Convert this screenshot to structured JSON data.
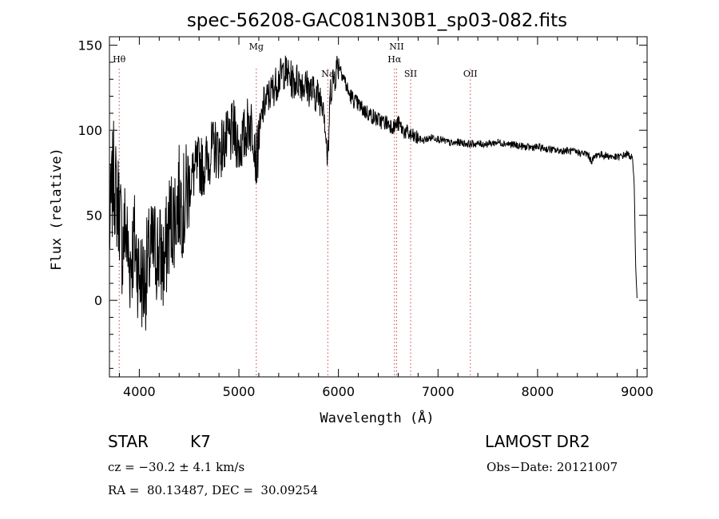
{
  "chart_data": {
    "type": "line",
    "title": "spec-56208-GAC081N30B1_sp03-082.fits",
    "xlabel": "Wavelength (Å)",
    "ylabel": "Flux (relative)",
    "xlim": [
      3700,
      9100
    ],
    "ylim": [
      -45,
      155
    ],
    "xticks": [
      4000,
      5000,
      6000,
      7000,
      8000,
      9000
    ],
    "yticks": [
      0,
      50,
      100,
      150
    ],
    "grid": false,
    "series": [
      {
        "x": [
          3700,
          3740,
          3770,
          3800,
          3830,
          3860,
          3900,
          3950,
          4000,
          4050,
          4100,
          4150,
          4200,
          4250,
          4300,
          4350,
          4400,
          4450,
          4500,
          4550,
          4600,
          4650,
          4700,
          4750,
          4800,
          4850,
          4900,
          4950,
          5000,
          5050,
          5100,
          5150,
          5175,
          5200,
          5250,
          5300,
          5350,
          5400,
          5450,
          5500,
          5550,
          5600,
          5650,
          5700,
          5750,
          5800,
          5850,
          5893,
          5920,
          5950,
          6000,
          6050,
          6100,
          6150,
          6200,
          6250,
          6300,
          6350,
          6400,
          6450,
          6500,
          6563,
          6600,
          6650,
          6700,
          6750,
          6800,
          6850,
          6900,
          6950,
          7000,
          7050,
          7100,
          7150,
          7200,
          7300,
          7400,
          7500,
          7600,
          7700,
          7800,
          7900,
          8000,
          8100,
          8200,
          8300,
          8400,
          8500,
          8542,
          8600,
          8700,
          8800,
          8850,
          8900,
          8950,
          8970,
          8985,
          9000
        ],
        "y": [
          40,
          75,
          60,
          55,
          30,
          45,
          20,
          35,
          15,
          10,
          25,
          30,
          28,
          20,
          45,
          50,
          60,
          55,
          70,
          75,
          80,
          78,
          85,
          90,
          88,
          92,
          95,
          100,
          90,
          95,
          105,
          100,
          80,
          95,
          115,
          120,
          125,
          130,
          135,
          132,
          128,
          130,
          127,
          125,
          122,
          120,
          118,
          80,
          125,
          130,
          140,
          132,
          122,
          118,
          115,
          112,
          110,
          108,
          106,
          105,
          104,
          102,
          104,
          100,
          98,
          96,
          95,
          94,
          95,
          96,
          95,
          94,
          93,
          92,
          93,
          92,
          92,
          92,
          93,
          92,
          91,
          90,
          90,
          89,
          88,
          88,
          87,
          86,
          82,
          86,
          85,
          84,
          85,
          86,
          84,
          70,
          20,
          0
        ]
      }
    ],
    "line_markers": [
      {
        "label": "Hθ",
        "x": 3798
      },
      {
        "label": "Mg",
        "x": 5175
      },
      {
        "label": "Na",
        "x": 5893
      },
      {
        "label": "NII",
        "x": 6584
      },
      {
        "label": "Hα",
        "x": 6563
      },
      {
        "label": "SII",
        "x": 6725
      },
      {
        "label": "OII",
        "x": 7325
      }
    ]
  },
  "info": {
    "object_class": "STAR",
    "subclass": "K7",
    "survey": "LAMOST DR2",
    "cz": "cz = −30.2 ± 4.1 km/s",
    "obs_date": "Obs−Date: 20121007",
    "coords": "RA =  80.13487, DEC =  30.09254"
  }
}
